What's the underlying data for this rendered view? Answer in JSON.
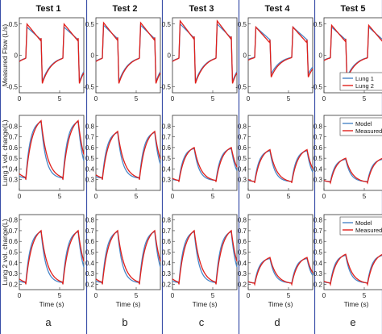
{
  "chart_data": {
    "type": "line",
    "column_titles": [
      "Test 1",
      "Test 2",
      "Test 3",
      "Test 4",
      "Test 5"
    ],
    "panel_letters": [
      "a",
      "b",
      "c",
      "d",
      "e"
    ],
    "xlabel": "Time (s)",
    "xlim": [
      0,
      8
    ],
    "xticks": [
      0,
      5
    ],
    "colors": {
      "blue": "#4a86c8",
      "red": "#e0201b",
      "divider": "#3b4fa8"
    },
    "rows": [
      {
        "ylabel": "Measured Flow (L/s)",
        "ylim": [
          -0.6,
          0.6
        ],
        "yticks": [
          -0.5,
          0,
          0.5
        ],
        "legend": {
          "column": 4,
          "position": "bottom-right",
          "entries": [
            "Lung 1",
            "Lung 2"
          ]
        },
        "series_names": [
          "Lung 1",
          "Lung 2"
        ],
        "peak_values": [
          [
            0.45,
            0.5
          ],
          [
            0.48,
            0.52
          ],
          [
            0.5,
            0.55
          ],
          [
            0.45,
            0.45
          ],
          [
            0.45,
            0.48
          ]
        ],
        "trough_values": [
          [
            -0.42,
            -0.45
          ],
          [
            -0.42,
            -0.45
          ],
          [
            -0.42,
            -0.45
          ],
          [
            -0.3,
            -0.35
          ],
          [
            -0.35,
            -0.38
          ]
        ]
      },
      {
        "ylabel": "Lung 1 vol. change(L)",
        "ylim": [
          0.2,
          0.9
        ],
        "yticks": [
          0.3,
          0.4,
          0.5,
          0.6,
          0.7,
          0.8
        ],
        "legend": {
          "column": 4,
          "position": "top-right",
          "entries": [
            "Model",
            "Measured"
          ]
        },
        "series_names": [
          "Model",
          "Measured"
        ],
        "peak_values": [
          0.85,
          0.75,
          0.6,
          0.58,
          0.5
        ],
        "trough_values": [
          0.3,
          0.3,
          0.28,
          0.27,
          0.27
        ]
      },
      {
        "ylabel": "Lung 2 vol. change(L)",
        "ylim": [
          0.15,
          0.85
        ],
        "yticks": [
          0.2,
          0.3,
          0.4,
          0.5,
          0.6,
          0.7,
          0.8
        ],
        "legend": {
          "column": 4,
          "position": "top-right",
          "entries": [
            "Model",
            "Measured"
          ]
        },
        "series_names": [
          "Model",
          "Measured"
        ],
        "peak_values": [
          0.7,
          0.7,
          0.7,
          0.45,
          0.48
        ],
        "trough_values": [
          0.2,
          0.2,
          0.2,
          0.2,
          0.2
        ]
      }
    ]
  }
}
